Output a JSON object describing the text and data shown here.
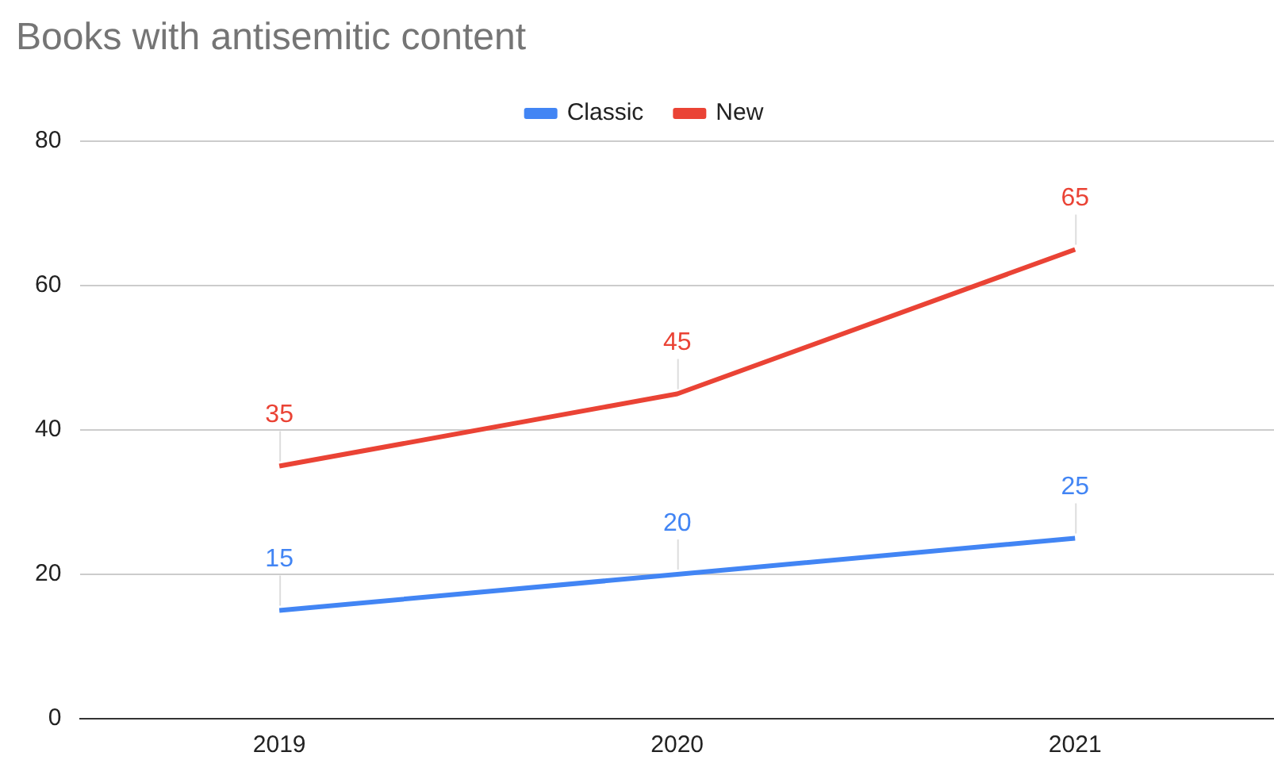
{
  "chart_data": {
    "type": "line",
    "title": "Books with antisemitic content",
    "categories": [
      "2019",
      "2020",
      "2021"
    ],
    "series": [
      {
        "name": "Classic",
        "color": "#4285f4",
        "values": [
          15,
          20,
          25
        ]
      },
      {
        "name": "New",
        "color": "#ea4335",
        "values": [
          35,
          45,
          65
        ]
      }
    ],
    "ylim": [
      0,
      80
    ],
    "yticks": [
      0,
      20,
      40,
      60,
      80
    ],
    "grid": "y",
    "legend": "top",
    "data_labels": true,
    "marker": "none",
    "line_style": "solid"
  }
}
